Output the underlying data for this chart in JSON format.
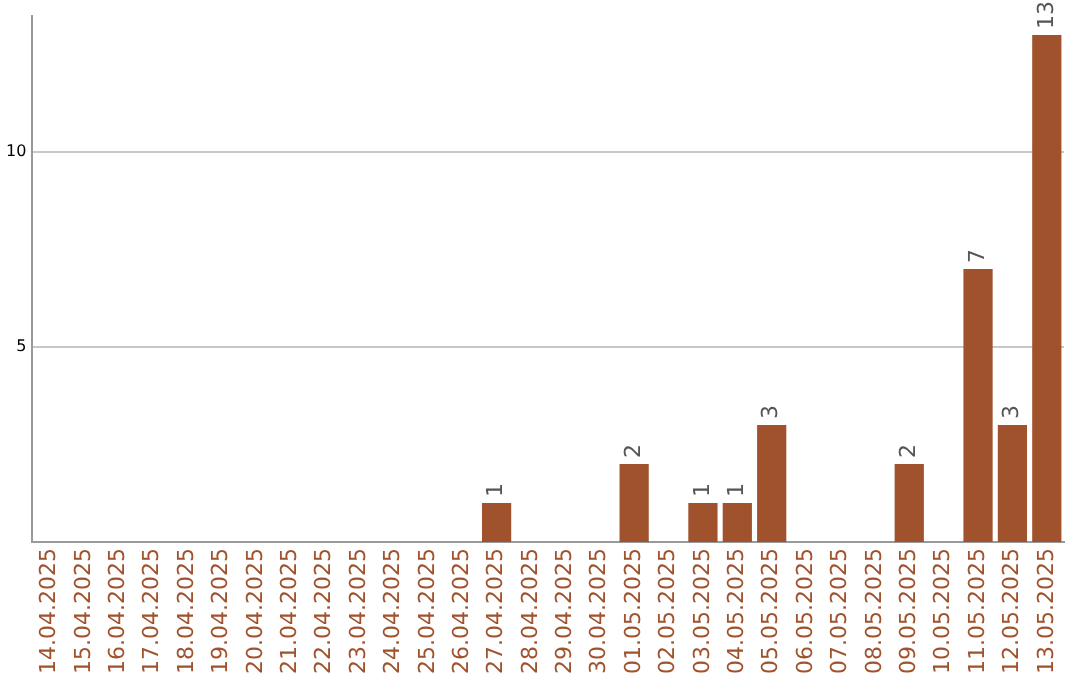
{
  "chart_data": {
    "type": "bar",
    "categories": [
      "14.04.2025",
      "15.04.2025",
      "16.04.2025",
      "17.04.2025",
      "18.04.2025",
      "19.04.2025",
      "20.04.2025",
      "21.04.2025",
      "22.04.2025",
      "23.04.2025",
      "24.04.2025",
      "25.04.2025",
      "26.04.2025",
      "27.04.2025",
      "28.04.2025",
      "29.04.2025",
      "30.04.2025",
      "01.05.2025",
      "02.05.2025",
      "03.05.2025",
      "04.05.2025",
      "05.05.2025",
      "06.05.2025",
      "07.05.2025",
      "08.05.2025",
      "09.05.2025",
      "10.05.2025",
      "11.05.2025",
      "12.05.2025",
      "13.05.2025"
    ],
    "values": [
      null,
      null,
      null,
      null,
      null,
      null,
      null,
      null,
      null,
      null,
      null,
      null,
      null,
      1,
      null,
      null,
      null,
      2,
      null,
      1,
      1,
      3,
      null,
      null,
      null,
      2,
      null,
      7,
      3,
      13
    ],
    "color": "#a0522d",
    "ylim": [
      0,
      13.5
    ],
    "yticks": [
      5,
      10
    ],
    "grid": "y",
    "data_labels": true,
    "legend": false
  }
}
